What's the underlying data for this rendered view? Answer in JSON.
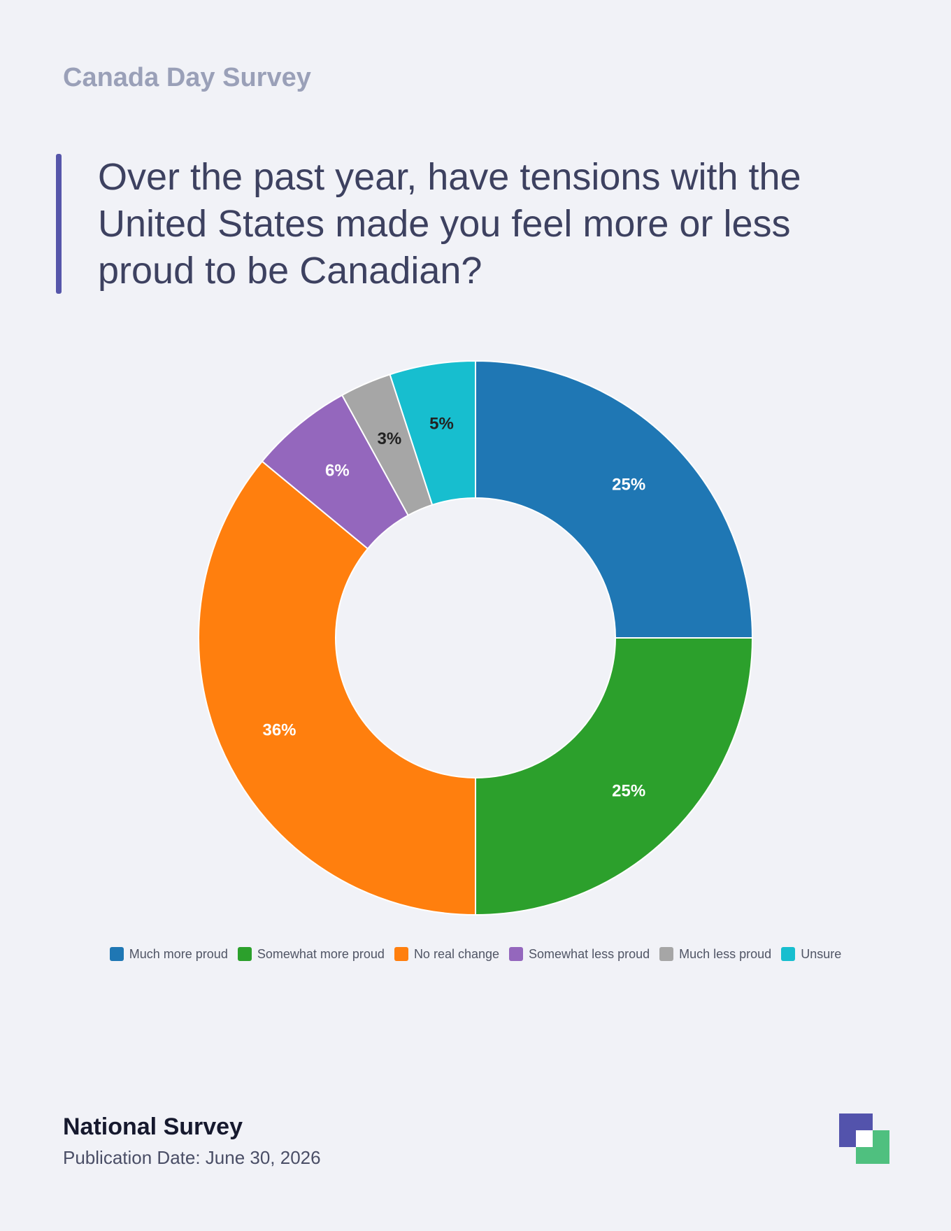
{
  "header": {
    "kicker": "Canada Day Survey",
    "question": "Over the past year, have tensions with the United States made you feel more or less proud to be Canadian?"
  },
  "chart_data": {
    "type": "pie",
    "variant": "donut",
    "categories": [
      "Much more proud",
      "Somewhat more proud",
      "No real change",
      "Somewhat less proud",
      "Much less proud",
      "Unsure"
    ],
    "values": [
      25,
      25,
      36,
      6,
      3,
      5
    ],
    "labels": [
      "25%",
      "25%",
      "36%",
      "6%",
      "3%",
      "5%"
    ],
    "colors": [
      "#1f77b4",
      "#2ca02c",
      "#ff7f0e",
      "#9467bd",
      "#a6a6a6",
      "#17becf"
    ],
    "label_colors": [
      "#ffffff",
      "#ffffff",
      "#ffffff",
      "#ffffff",
      "#222222",
      "#222222"
    ],
    "legend": "bottom"
  },
  "footer": {
    "source": "National Survey",
    "date": "Publication Date: June 30, 2026"
  },
  "logo": {
    "icon": "brand-logo-icon",
    "colors": [
      "#5353ac",
      "#4fc07f"
    ]
  }
}
